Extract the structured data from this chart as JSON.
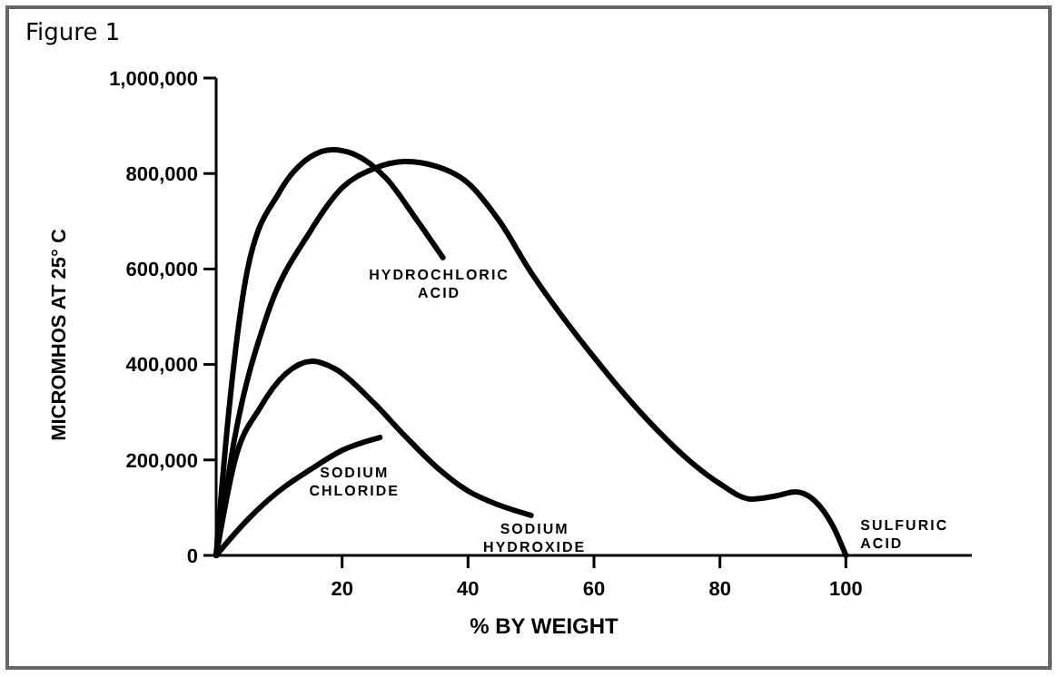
{
  "chart_data": {
    "type": "line",
    "title": "Figure 1",
    "xlabel": "% BY WEIGHT",
    "ylabel": "MICROMHOS AT 25° C",
    "xlim": [
      0,
      120
    ],
    "xticks": [
      20,
      40,
      60,
      80,
      100
    ],
    "ylim": [
      0,
      1000000
    ],
    "yticks": [
      {
        "value": 0,
        "label": "0"
      },
      {
        "value": 200000,
        "label": "200,000"
      },
      {
        "value": 400000,
        "label": "400,000"
      },
      {
        "value": 600000,
        "label": "600,000"
      },
      {
        "value": 800000,
        "label": "800,000"
      },
      {
        "value": 1000000,
        "label": "1,000,000"
      }
    ],
    "series": [
      {
        "name": "HYDROCHLORIC ACID",
        "color": "#000000",
        "x": [
          0,
          2,
          5,
          10,
          15,
          18.5,
          22,
          27,
          32,
          36
        ],
        "values": [
          0,
          300000,
          600000,
          760000,
          835000,
          850000,
          840000,
          790000,
          700000,
          624000
        ]
      },
      {
        "name": "SULFURIC ACID",
        "color": "#000000",
        "x": [
          0,
          3,
          8,
          15,
          20,
          25,
          30,
          35,
          40,
          45,
          50,
          55,
          60,
          65,
          70,
          75,
          80,
          85,
          89,
          92,
          95,
          98,
          100
        ],
        "values": [
          0,
          250000,
          500000,
          680000,
          770000,
          810000,
          825000,
          815000,
          780000,
          700000,
          593000,
          500000,
          415000,
          335000,
          263000,
          200000,
          150000,
          118000,
          125000,
          133000,
          115000,
          60000,
          0
        ]
      },
      {
        "name": "SODIUM HYDROXIDE",
        "color": "#000000",
        "x": [
          0,
          3,
          7,
          11,
          15.3,
          19,
          25,
          30,
          35,
          40,
          45,
          50
        ],
        "values": [
          0,
          200000,
          310000,
          380000,
          407000,
          390000,
          320000,
          250000,
          185000,
          135000,
          105000,
          84000
        ]
      },
      {
        "name": "SODIUM CHLORIDE",
        "color": "#000000",
        "x": [
          0,
          5,
          10,
          15,
          20,
          26
        ],
        "values": [
          0,
          75000,
          135000,
          180000,
          220000,
          247000
        ]
      }
    ]
  }
}
